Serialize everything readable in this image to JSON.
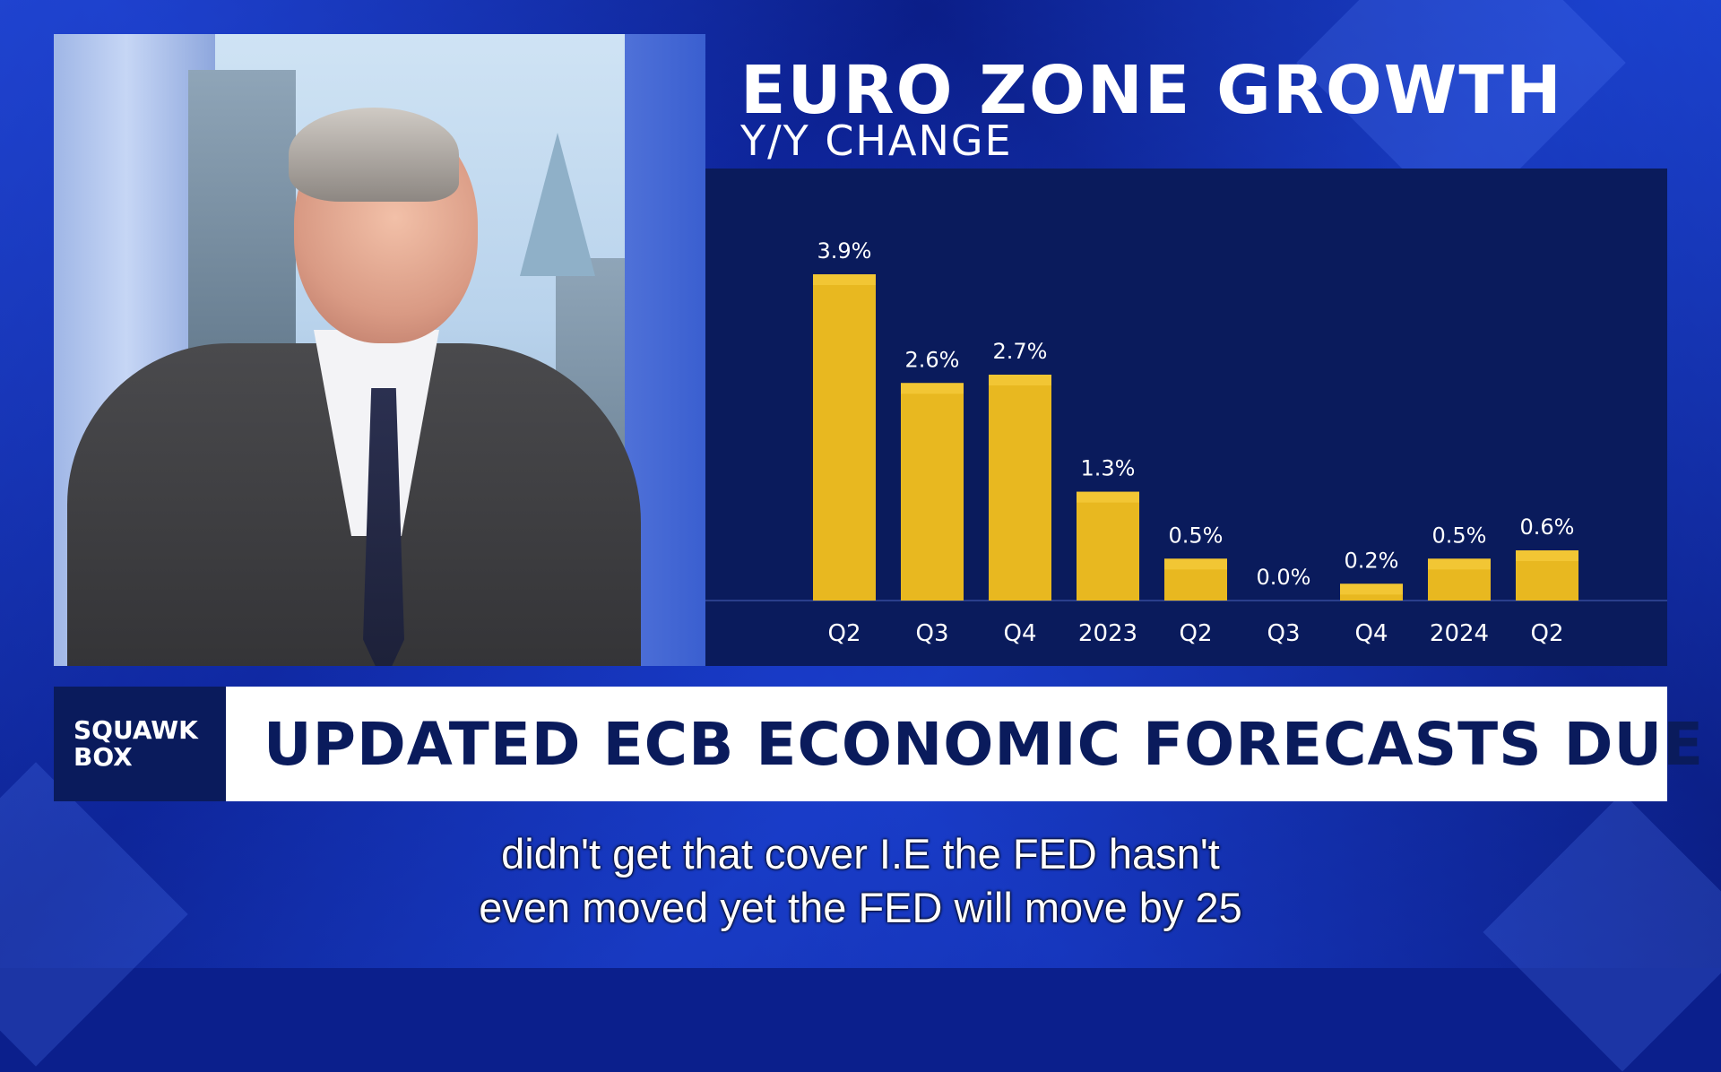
{
  "chart_data": {
    "type": "bar",
    "title": "EURO ZONE GROWTH",
    "subtitle": "Y/Y CHANGE",
    "categories": [
      "Q2",
      "Q3",
      "Q4",
      "2023",
      "Q2",
      "Q3",
      "Q4",
      "2024",
      "Q2"
    ],
    "values": [
      3.9,
      2.6,
      2.7,
      1.3,
      0.5,
      0.0,
      0.2,
      0.5,
      0.6
    ],
    "data_labels": [
      "3.9%",
      "2.6%",
      "2.7%",
      "1.3%",
      "0.5%",
      "0.0%",
      "0.2%",
      "0.5%",
      "0.6%"
    ],
    "ylim": [
      0,
      4.5
    ],
    "grid": false,
    "legend": "none",
    "bar_color": "#e8b820"
  },
  "lower_third": {
    "show_line1": "SQUAWK",
    "show_line2": "BOX",
    "headline": "UPDATED ECB ECONOMIC FORECASTS DUE"
  },
  "captions": {
    "line1": "didn't get that cover I.E the FED hasn't",
    "line2": "even moved yet the FED will move by 25"
  },
  "colors": {
    "navy": "#0a1b5c",
    "background_blue": "#1535c4",
    "bar_gold": "#e8b820",
    "bar_cap": "#f2c634"
  }
}
